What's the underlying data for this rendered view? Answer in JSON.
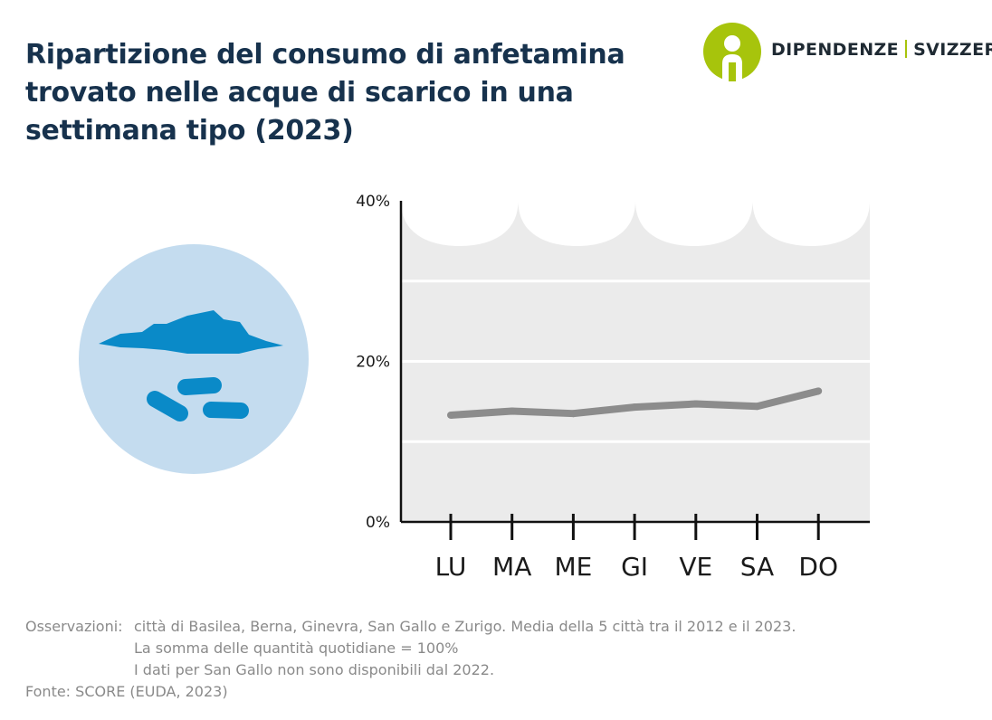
{
  "header": {
    "title_lines": [
      "Ripartizione del consumo di anfetamina",
      "trovato nelle acque di scarico in una",
      "settimana tipo (2023)"
    ]
  },
  "logo": {
    "left_text": "DIPENDENZE",
    "right_text": "SVIZZERA",
    "color": "#a7c40c",
    "icon": "person-circle-icon"
  },
  "illustration": {
    "icon": "water-pills-icon",
    "circle_color": "#c4dcef",
    "shape_color": "#0a8ac8"
  },
  "chart_data": {
    "type": "line",
    "categories": [
      "LU",
      "MA",
      "ME",
      "GI",
      "VE",
      "SA",
      "DO"
    ],
    "series": [
      {
        "values": [
          13.3,
          13.8,
          13.5,
          14.3,
          14.7,
          14.4,
          16.3
        ],
        "color": "#8c8c8c"
      }
    ],
    "yticks": [
      "0%",
      "20%",
      "40%"
    ],
    "ylim": [
      0,
      40
    ],
    "grid": true,
    "background_color": "#ebebeb"
  },
  "notes": {
    "label": "Osservazioni:",
    "lines": [
      "città di Basilea, Berna, Ginevra, San Gallo e Zurigo. Media della 5 città tra il 2012 e il 2023.",
      "La somma delle quantità quotidiane = 100%",
      "I dati per San Gallo non sono disponibili dal 2022."
    ],
    "source": "Fonte: SCORE (EUDA, 2023)"
  }
}
